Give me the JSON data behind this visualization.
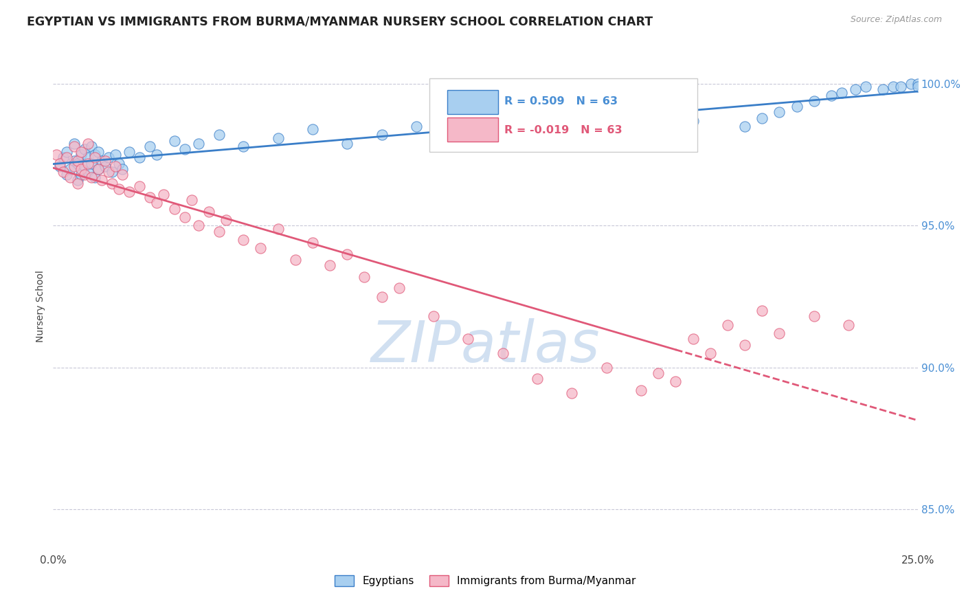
{
  "title": "EGYPTIAN VS IMMIGRANTS FROM BURMA/MYANMAR NURSERY SCHOOL CORRELATION CHART",
  "source": "Source: ZipAtlas.com",
  "ylabel": "Nursery School",
  "xlim": [
    0.0,
    0.25
  ],
  "ylim": [
    0.835,
    1.008
  ],
  "ytick_positions": [
    0.85,
    0.9,
    0.95,
    1.0
  ],
  "ytick_labels": [
    "85.0%",
    "90.0%",
    "95.0%",
    "100.0%"
  ],
  "xtick_positions": [
    0.0,
    0.25
  ],
  "xtick_labels": [
    "0.0%",
    "25.0%"
  ],
  "legend_labels": [
    "Egyptians",
    "Immigrants from Burma/Myanmar"
  ],
  "r_egyptian": 0.509,
  "n_egyptian": 63,
  "r_burma": -0.019,
  "n_burma": 63,
  "color_egyptian": "#a8cff0",
  "color_burma": "#f5b8c8",
  "color_trendline_egyptian": "#3a7ec8",
  "color_trendline_burma": "#e05878",
  "background_color": "#ffffff",
  "title_color": "#222222",
  "axis_label_color": "#444444",
  "ytick_color": "#4a8fd4",
  "xtick_color": "#444444",
  "grid_color": "#c8c8d8",
  "legend_box_color": "#cccccc",
  "watermark_color": "#ccddf0",
  "eg_x": [
    0.002,
    0.003,
    0.004,
    0.004,
    0.005,
    0.006,
    0.006,
    0.007,
    0.007,
    0.008,
    0.008,
    0.009,
    0.009,
    0.01,
    0.01,
    0.011,
    0.011,
    0.012,
    0.012,
    0.013,
    0.013,
    0.014,
    0.015,
    0.016,
    0.017,
    0.018,
    0.019,
    0.02,
    0.022,
    0.025,
    0.028,
    0.03,
    0.035,
    0.038,
    0.042,
    0.048,
    0.055,
    0.065,
    0.075,
    0.085,
    0.095,
    0.105,
    0.115,
    0.125,
    0.14,
    0.155,
    0.17,
    0.185,
    0.2,
    0.205,
    0.21,
    0.215,
    0.22,
    0.225,
    0.228,
    0.232,
    0.235,
    0.24,
    0.243,
    0.245,
    0.248,
    0.25,
    0.25
  ],
  "eg_y": [
    0.971,
    0.974,
    0.968,
    0.976,
    0.97,
    0.973,
    0.979,
    0.966,
    0.972,
    0.975,
    0.968,
    0.971,
    0.977,
    0.969,
    0.974,
    0.972,
    0.978,
    0.967,
    0.975,
    0.97,
    0.976,
    0.973,
    0.971,
    0.974,
    0.969,
    0.975,
    0.972,
    0.97,
    0.976,
    0.974,
    0.978,
    0.975,
    0.98,
    0.977,
    0.979,
    0.982,
    0.978,
    0.981,
    0.984,
    0.979,
    0.982,
    0.985,
    0.983,
    0.98,
    0.984,
    0.986,
    0.983,
    0.987,
    0.985,
    0.988,
    0.99,
    0.992,
    0.994,
    0.996,
    0.997,
    0.998,
    0.999,
    0.998,
    0.999,
    0.999,
    1.0,
    1.0,
    0.999
  ],
  "bm_x": [
    0.001,
    0.002,
    0.003,
    0.004,
    0.005,
    0.006,
    0.006,
    0.007,
    0.007,
    0.008,
    0.008,
    0.009,
    0.01,
    0.01,
    0.011,
    0.012,
    0.013,
    0.014,
    0.015,
    0.016,
    0.017,
    0.018,
    0.019,
    0.02,
    0.022,
    0.025,
    0.028,
    0.03,
    0.032,
    0.035,
    0.038,
    0.04,
    0.042,
    0.045,
    0.048,
    0.05,
    0.055,
    0.06,
    0.065,
    0.07,
    0.075,
    0.08,
    0.085,
    0.09,
    0.095,
    0.1,
    0.11,
    0.12,
    0.13,
    0.14,
    0.15,
    0.16,
    0.17,
    0.175,
    0.18,
    0.185,
    0.19,
    0.195,
    0.2,
    0.205,
    0.21,
    0.22,
    0.23
  ],
  "bm_y": [
    0.975,
    0.972,
    0.969,
    0.974,
    0.967,
    0.971,
    0.978,
    0.965,
    0.973,
    0.97,
    0.976,
    0.968,
    0.972,
    0.979,
    0.967,
    0.974,
    0.97,
    0.966,
    0.973,
    0.969,
    0.965,
    0.971,
    0.963,
    0.968,
    0.962,
    0.964,
    0.96,
    0.958,
    0.961,
    0.956,
    0.953,
    0.959,
    0.95,
    0.955,
    0.948,
    0.952,
    0.945,
    0.942,
    0.949,
    0.938,
    0.944,
    0.936,
    0.94,
    0.932,
    0.925,
    0.928,
    0.918,
    0.91,
    0.905,
    0.896,
    0.891,
    0.9,
    0.892,
    0.898,
    0.895,
    0.91,
    0.905,
    0.915,
    0.908,
    0.92,
    0.912,
    0.918,
    0.915
  ]
}
